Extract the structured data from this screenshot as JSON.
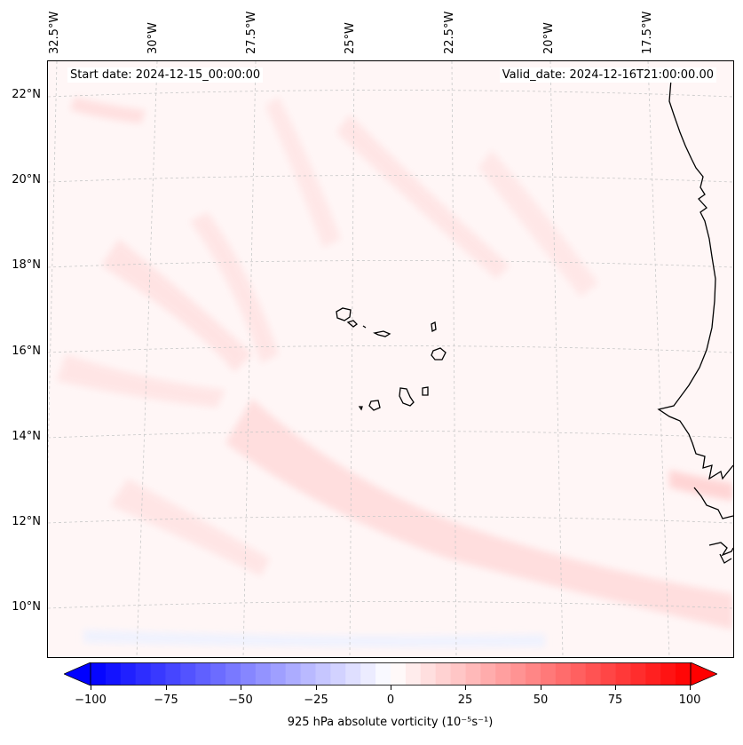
{
  "lon_labels": [
    "32.5°W",
    "30°W",
    "27.5°W",
    "25°W",
    "22.5°W",
    "20°W",
    "17.5°W"
  ],
  "lat_labels": [
    "22°N",
    "20°N",
    "18°N",
    "16°N",
    "14°N",
    "12°N",
    "10°N"
  ],
  "info": {
    "start": "Start date: 2024-12-15_00:00:00",
    "valid": "Valid_date: 2024-12-16T21:00:00.00"
  },
  "colorbar": {
    "ticks": [
      "−100",
      "−75",
      "−50",
      "−25",
      "0",
      "25",
      "50",
      "75",
      "100"
    ],
    "label": "925 hPa absolute vorticity (10⁻⁵s⁻¹)",
    "min_color": "#0000ff",
    "mid_color": "#ffffff",
    "max_color": "#ff0000"
  },
  "colors": {
    "coast": "#000000",
    "grid": "#bbbbbb"
  }
}
